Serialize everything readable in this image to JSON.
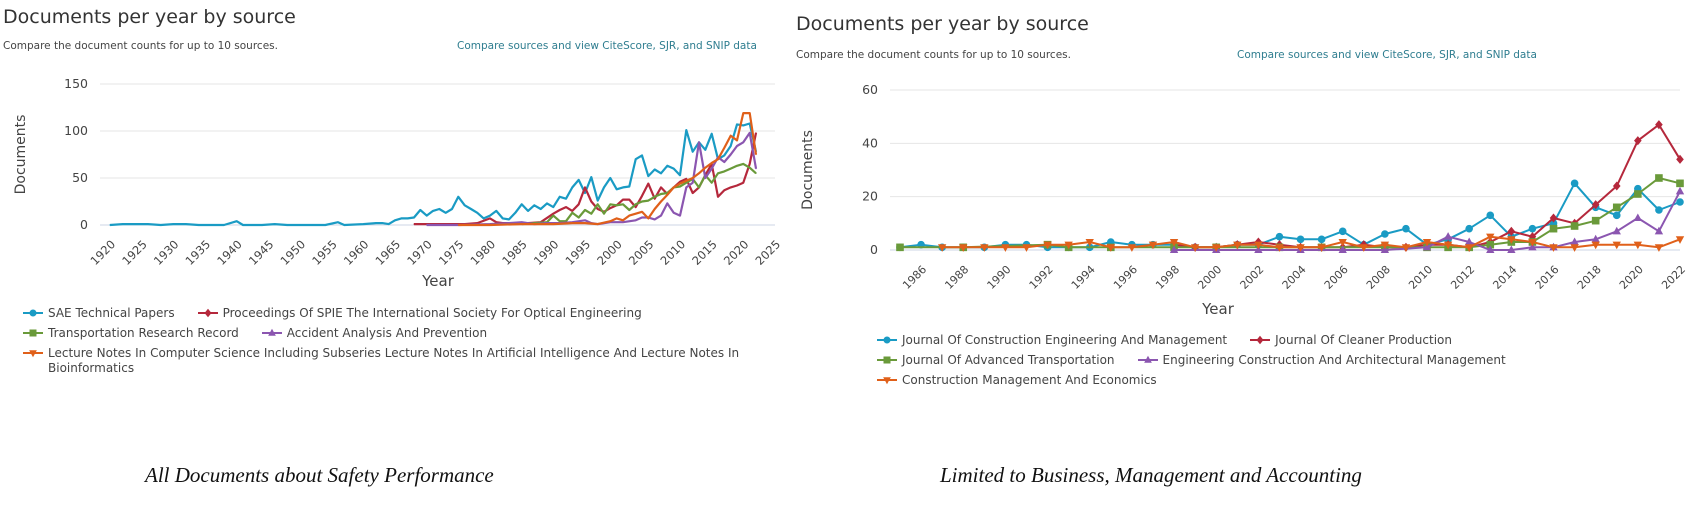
{
  "panels": [
    {
      "title": "Documents per year by source",
      "subtitle": "Compare the document counts for up to 10 sources.",
      "link": "Compare sources and view CiteScore, SJR, and SNIP data",
      "caption": "All Documents about Safety Performance"
    },
    {
      "title": "Documents per year by source",
      "subtitle": "Compare the document counts for up to 10 sources.",
      "link": "Compare sources and view CiteScore, SJR, and SNIP data",
      "caption": "Limited to Business, Management and Accounting"
    }
  ],
  "chart_data": [
    {
      "type": "line",
      "title": "Documents per year by source",
      "xlabel": "Year",
      "ylabel": "Documents",
      "xlim": [
        1920,
        2025
      ],
      "ylim": [
        0,
        150
      ],
      "xticks": [
        1920,
        1925,
        1930,
        1935,
        1940,
        1945,
        1950,
        1955,
        1960,
        1965,
        1970,
        1975,
        1980,
        1985,
        1990,
        1995,
        2000,
        2005,
        2010,
        2015,
        2020,
        2025
      ],
      "yticks": [
        0,
        50,
        100,
        150
      ],
      "grid": true,
      "legend_position": "bottom",
      "series": [
        {
          "name": "SAE Technical Papers",
          "color": "#1a9bc4",
          "marker": "circle",
          "x": [
            1920,
            1922,
            1924,
            1926,
            1928,
            1930,
            1932,
            1934,
            1936,
            1938,
            1940,
            1941,
            1944,
            1946,
            1948,
            1950,
            1952,
            1954,
            1956,
            1957,
            1960,
            1962,
            1963,
            1964,
            1965,
            1966,
            1967,
            1968,
            1969,
            1970,
            1971,
            1972,
            1973,
            1974,
            1975,
            1976,
            1977,
            1978,
            1979,
            1980,
            1981,
            1982,
            1983,
            1984,
            1985,
            1986,
            1987,
            1988,
            1989,
            1990,
            1991,
            1992,
            1993,
            1994,
            1995,
            1996,
            1997,
            1998,
            1999,
            2000,
            2001,
            2002,
            2003,
            2004,
            2005,
            2006,
            2007,
            2008,
            2009,
            2010,
            2011,
            2012,
            2013,
            2014,
            2015,
            2016,
            2017,
            2018,
            2019,
            2020,
            2021,
            2022
          ],
          "y": [
            0,
            1,
            1,
            1,
            0,
            1,
            1,
            0,
            0,
            0,
            4,
            0,
            0,
            1,
            0,
            0,
            0,
            0,
            3,
            0,
            1,
            2,
            2,
            1,
            5,
            7,
            7,
            8,
            16,
            10,
            15,
            17,
            13,
            17,
            30,
            21,
            17,
            13,
            7,
            10,
            15,
            7,
            6,
            13,
            22,
            15,
            21,
            17,
            23,
            19,
            30,
            28,
            40,
            48,
            34,
            51,
            26,
            40,
            50,
            38,
            40,
            41,
            70,
            74,
            52,
            59,
            55,
            63,
            60,
            53,
            101,
            78,
            88,
            80,
            97,
            70,
            74,
            84,
            107,
            106,
            108,
            78
          ]
        },
        {
          "name": "Proceedings Of SPIE The International Society For Optical Engineering",
          "color": "#b5283c",
          "marker": "diamond",
          "x": [
            1968,
            1970,
            1972,
            1974,
            1976,
            1978,
            1980,
            1981,
            1982,
            1984,
            1986,
            1988,
            1990,
            1991,
            1992,
            1993,
            1994,
            1995,
            1996,
            1997,
            1998,
            1999,
            2000,
            2001,
            2002,
            2003,
            2004,
            2005,
            2006,
            2007,
            2008,
            2009,
            2010,
            2011,
            2012,
            2013,
            2014,
            2015,
            2016,
            2017,
            2018,
            2019,
            2020,
            2021,
            2022
          ],
          "y": [
            1,
            1,
            1,
            1,
            1,
            2,
            7,
            3,
            2,
            2,
            2,
            3,
            12,
            16,
            19,
            15,
            22,
            40,
            25,
            17,
            14,
            18,
            21,
            27,
            27,
            19,
            31,
            44,
            28,
            40,
            33,
            40,
            46,
            49,
            34,
            40,
            53,
            65,
            30,
            37,
            40,
            42,
            45,
            65,
            98
          ]
        },
        {
          "name": "Transportation Research Record",
          "color": "#6a9a3a",
          "marker": "square",
          "x": [
            1985,
            1987,
            1989,
            1990,
            1991,
            1992,
            1993,
            1994,
            1995,
            1996,
            1997,
            1998,
            1999,
            2000,
            2001,
            2002,
            2003,
            2004,
            2005,
            2006,
            2007,
            2008,
            2009,
            2010,
            2011,
            2012,
            2013,
            2014,
            2015,
            2016,
            2017,
            2018,
            2019,
            2020,
            2021,
            2022
          ],
          "y": [
            1,
            2,
            3,
            10,
            4,
            4,
            13,
            8,
            16,
            12,
            22,
            12,
            22,
            21,
            22,
            16,
            22,
            25,
            26,
            30,
            33,
            34,
            40,
            41,
            45,
            49,
            40,
            53,
            45,
            55,
            57,
            60,
            63,
            65,
            61,
            55
          ]
        },
        {
          "name": "Accident Analysis And Prevention",
          "color": "#8b56b0",
          "marker": "triangle-up",
          "x": [
            1970,
            1975,
            1980,
            1983,
            1985,
            1987,
            1989,
            1991,
            1993,
            1995,
            1996,
            1997,
            1999,
            2001,
            2003,
            2004,
            2005,
            2006,
            2007,
            2008,
            2009,
            2010,
            2011,
            2012,
            2013,
            2014,
            2015,
            2016,
            2017,
            2018,
            2019,
            2020,
            2021,
            2022
          ],
          "y": [
            0,
            0,
            1,
            2,
            3,
            1,
            2,
            2,
            3,
            5,
            2,
            1,
            3,
            3,
            5,
            8,
            8,
            6,
            10,
            23,
            13,
            10,
            40,
            45,
            88,
            50,
            60,
            72,
            67,
            75,
            84,
            88,
            98,
            60
          ]
        },
        {
          "name": "Lecture Notes In Computer Science Including Subseries Lecture Notes In Artificial Intelligence And Lecture Notes In Bioinformatics",
          "color": "#e0601a",
          "marker": "triangle-down",
          "x": [
            1975,
            1980,
            1985,
            1990,
            1993,
            1995,
            1997,
            1999,
            2000,
            2001,
            2002,
            2003,
            2004,
            2005,
            2006,
            2007,
            2008,
            2009,
            2010,
            2011,
            2012,
            2013,
            2014,
            2015,
            2016,
            2017,
            2018,
            2019,
            2020,
            2021,
            2022
          ],
          "y": [
            0,
            0,
            1,
            1,
            2,
            2,
            1,
            4,
            7,
            5,
            10,
            12,
            14,
            7,
            17,
            25,
            32,
            40,
            44,
            47,
            50,
            55,
            61,
            66,
            70,
            82,
            95,
            90,
            119,
            119,
            75
          ]
        }
      ]
    },
    {
      "type": "line",
      "title": "Documents per year by source",
      "xlabel": "Year",
      "ylabel": "Documents",
      "xlim": [
        1985,
        2022
      ],
      "ylim": [
        0,
        60
      ],
      "xticks": [
        1986,
        1988,
        1990,
        1992,
        1994,
        1996,
        1998,
        2000,
        2002,
        2004,
        2006,
        2008,
        2010,
        2012,
        2014,
        2016,
        2018,
        2020,
        2022
      ],
      "yticks": [
        0,
        20,
        40,
        60
      ],
      "grid": true,
      "legend_position": "bottom",
      "series": [
        {
          "name": "Journal Of Construction Engineering And Management",
          "color": "#1a9bc4",
          "marker": "circle",
          "x": [
            1985,
            1986,
            1987,
            1988,
            1989,
            1990,
            1991,
            1992,
            1993,
            1994,
            1995,
            1996,
            1997,
            1998,
            1999,
            2000,
            2001,
            2002,
            2003,
            2004,
            2005,
            2006,
            2007,
            2008,
            2009,
            2010,
            2011,
            2012,
            2013,
            2014,
            2015,
            2016,
            2017,
            2018,
            2019,
            2020,
            2021,
            2022
          ],
          "y": [
            1,
            2,
            1,
            1,
            1,
            2,
            2,
            1,
            1,
            1,
            3,
            2,
            2,
            2,
            1,
            1,
            2,
            2,
            5,
            4,
            4,
            7,
            2,
            6,
            8,
            2,
            4,
            8,
            13,
            5,
            8,
            10,
            25,
            16,
            13,
            23,
            15,
            18
          ]
        },
        {
          "name": "Journal Of Cleaner Production",
          "color": "#b5283c",
          "marker": "diamond",
          "x": [
            1998,
            1999,
            2000,
            2001,
            2002,
            2003,
            2004,
            2005,
            2006,
            2007,
            2008,
            2009,
            2010,
            2011,
            2012,
            2013,
            2014,
            2015,
            2016,
            2017,
            2018,
            2019,
            2020,
            2021,
            2022
          ],
          "y": [
            2,
            1,
            1,
            2,
            3,
            2,
            1,
            1,
            1,
            2,
            1,
            1,
            2,
            2,
            1,
            3,
            7,
            5,
            12,
            10,
            17,
            24,
            41,
            47,
            34
          ]
        },
        {
          "name": "Journal Of Advanced Transportation",
          "color": "#6a9a3a",
          "marker": "square",
          "x": [
            1985,
            1988,
            1992,
            1993,
            1995,
            1998,
            2000,
            2003,
            2005,
            2008,
            2010,
            2011,
            2012,
            2013,
            2014,
            2015,
            2016,
            2017,
            2018,
            2019,
            2020,
            2021,
            2022
          ],
          "y": [
            1,
            1,
            2,
            1,
            1,
            1,
            1,
            1,
            1,
            1,
            1,
            1,
            1,
            2,
            3,
            3,
            8,
            9,
            11,
            16,
            21,
            27,
            25
          ]
        },
        {
          "name": "Engineering Construction And Architectural Management",
          "color": "#8b56b0",
          "marker": "triangle-up",
          "x": [
            1998,
            2000,
            2002,
            2004,
            2006,
            2008,
            2010,
            2011,
            2012,
            2013,
            2014,
            2015,
            2016,
            2017,
            2018,
            2019,
            2020,
            2021,
            2022
          ],
          "y": [
            0,
            0,
            0,
            0,
            0,
            0,
            1,
            5,
            3,
            0,
            0,
            1,
            1,
            3,
            4,
            7,
            12,
            7,
            22
          ]
        },
        {
          "name": "Construction Management And Economics",
          "color": "#e0601a",
          "marker": "triangle-down",
          "x": [
            1987,
            1988,
            1989,
            1990,
            1991,
            1992,
            1993,
            1994,
            1995,
            1996,
            1997,
            1998,
            1999,
            2000,
            2001,
            2002,
            2003,
            2004,
            2005,
            2006,
            2007,
            2008,
            2009,
            2010,
            2011,
            2012,
            2013,
            2014,
            2015,
            2016,
            2017,
            2018,
            2019,
            2020,
            2021,
            2022
          ],
          "y": [
            1,
            1,
            1,
            1,
            1,
            2,
            2,
            3,
            1,
            1,
            2,
            3,
            1,
            1,
            2,
            2,
            1,
            1,
            1,
            3,
            1,
            2,
            1,
            3,
            2,
            1,
            5,
            4,
            3,
            1,
            1,
            2,
            2,
            2,
            1,
            4
          ]
        }
      ]
    }
  ]
}
